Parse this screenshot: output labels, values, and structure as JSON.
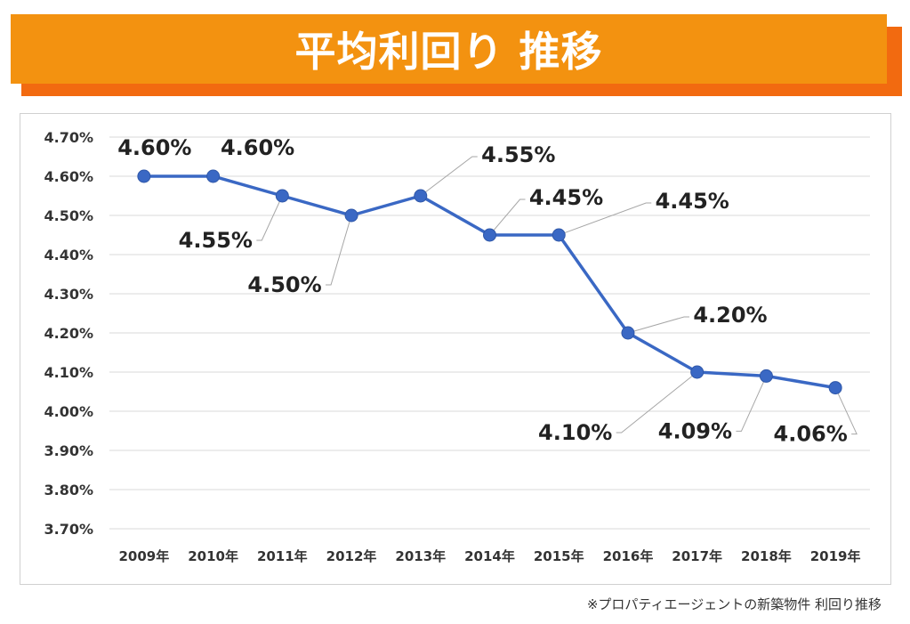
{
  "header": {
    "title": "平均利回り 推移"
  },
  "footnote": "※プロパティエージェントの新築物件 利回り推移",
  "colors": {
    "banner": "#f39210",
    "banner_shadow": "#f26a10",
    "line": "#3a68c4",
    "grid": "#d9d9d9"
  },
  "chart_data": {
    "type": "line",
    "categories": [
      "2009年",
      "2010年",
      "2011年",
      "2012年",
      "2013年",
      "2014年",
      "2015年",
      "2016年",
      "2017年",
      "2018年",
      "2019年"
    ],
    "series": [
      {
        "values": [
          4.6,
          4.6,
          4.55,
          4.5,
          4.55,
          4.45,
          4.45,
          4.2,
          4.1,
          4.09,
          4.06
        ]
      }
    ],
    "data_labels": [
      "4.60%",
      "4.60%",
      "4.55%",
      "4.50%",
      "4.55%",
      "4.45%",
      "4.45%",
      "4.20%",
      "4.10%",
      "4.09%",
      "4.06%"
    ],
    "y_ticks": [
      "4.70%",
      "4.60%",
      "4.50%",
      "4.40%",
      "4.30%",
      "4.20%",
      "4.10%",
      "4.00%",
      "3.90%",
      "3.80%",
      "3.70%"
    ],
    "ylim": [
      3.7,
      4.7
    ],
    "grid": true,
    "legend": "none"
  }
}
